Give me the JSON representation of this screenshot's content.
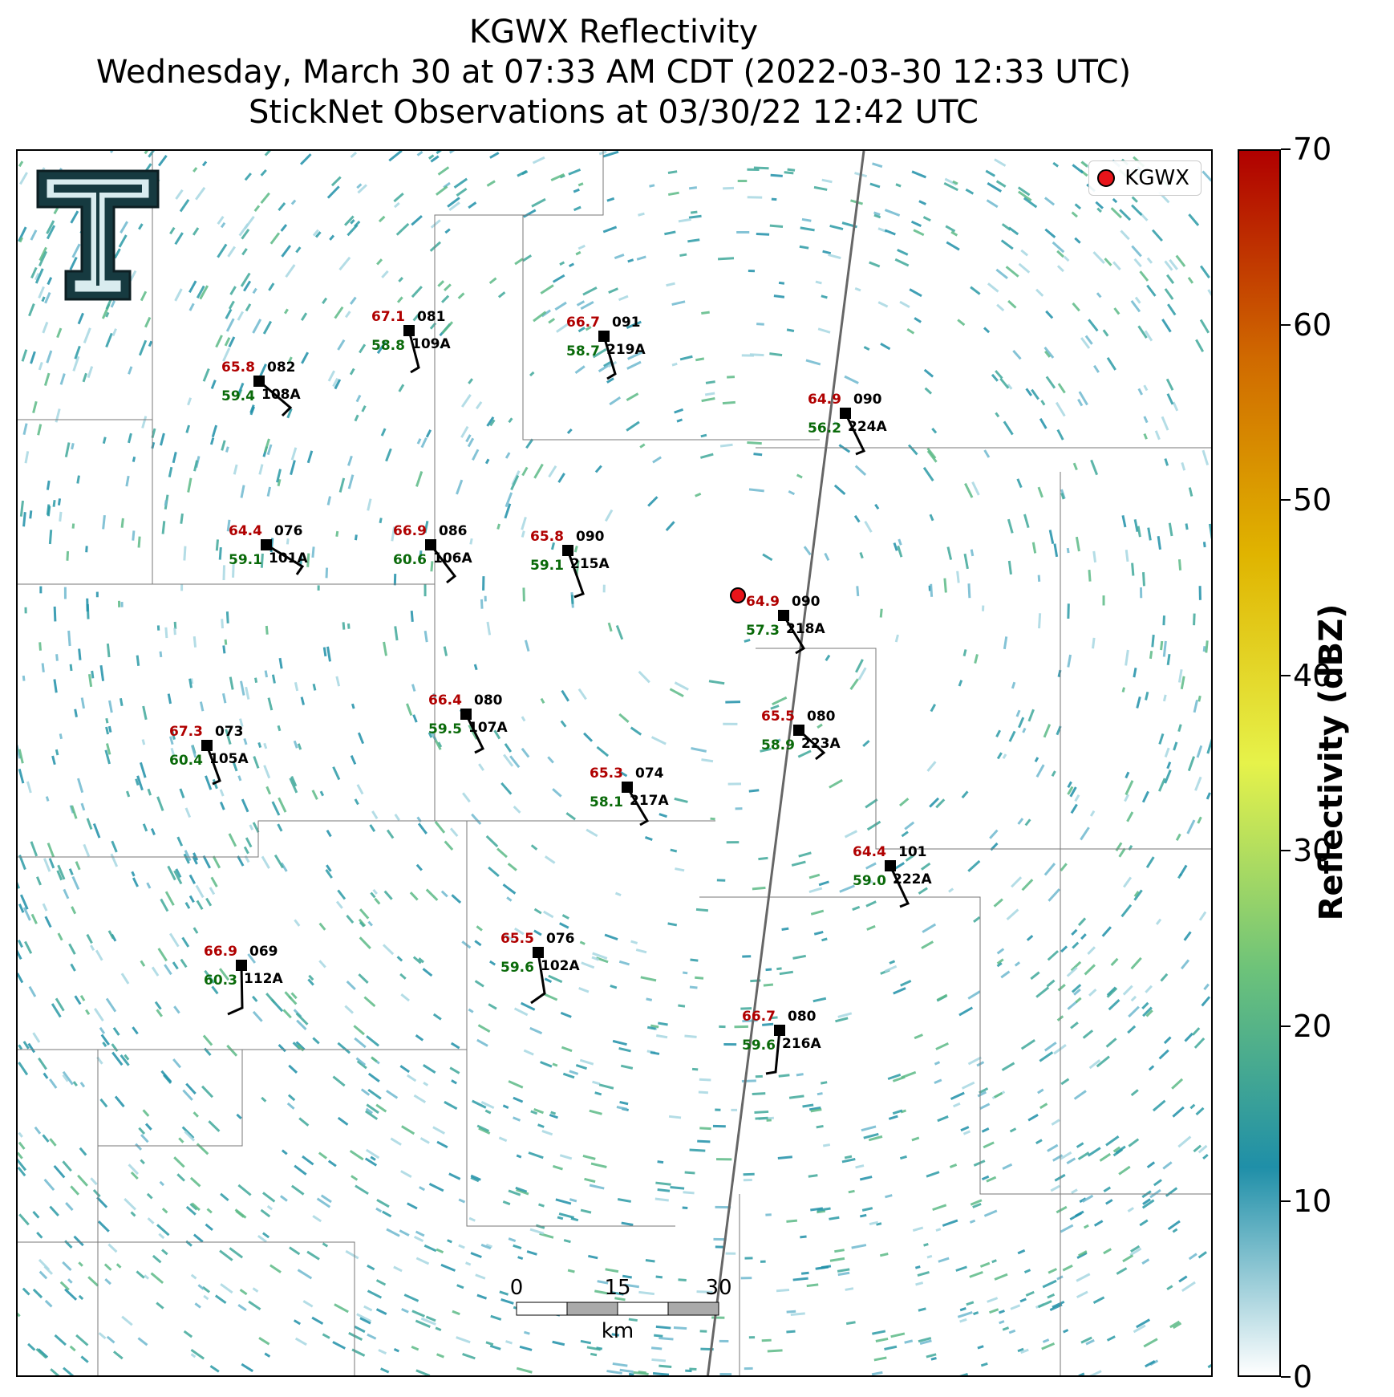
{
  "header": {
    "title_line1": "KGWX Reflectivity",
    "title_line2": "Wednesday, March 30 at 07:33 AM CDT (2022-03-30 12:33 UTC)",
    "title_line3": "StickNet Observations at 03/30/22 12:42 UTC"
  },
  "legend": {
    "label": "KGWX",
    "marker_color": "#e8141a"
  },
  "logo": {
    "name": "texas-tech-double-t-logo"
  },
  "colorbar": {
    "title": "Reflectivity (dBZ)",
    "ticks": [
      "0",
      "10",
      "20",
      "30",
      "40",
      "50",
      "60",
      "70"
    ],
    "range": [
      0,
      70
    ],
    "colors": [
      "#ffffff",
      "#1f8fa8",
      "#6cc27a",
      "#e6f24a",
      "#e0b400",
      "#d06a00",
      "#b00000"
    ]
  },
  "scale_bar": {
    "ticks": [
      "0",
      "15",
      "30"
    ],
    "unit": "km"
  },
  "stations": [
    {
      "id": "109A",
      "temp": "67.1",
      "dew": "58.8",
      "dir": "081"
    },
    {
      "id": "219A",
      "temp": "66.7",
      "dew": "58.7",
      "dir": "091"
    },
    {
      "id": "108A",
      "temp": "65.8",
      "dew": "59.4",
      "dir": "082"
    },
    {
      "id": "224A",
      "temp": "64.9",
      "dew": "56.2",
      "dir": "090"
    },
    {
      "id": "101A",
      "temp": "64.4",
      "dew": "59.1",
      "dir": "076"
    },
    {
      "id": "106A",
      "temp": "66.9",
      "dew": "60.6",
      "dir": "086"
    },
    {
      "id": "215A",
      "temp": "65.8",
      "dew": "59.1",
      "dir": "090"
    },
    {
      "id": "218A",
      "temp": "64.9",
      "dew": "57.3",
      "dir": "090"
    },
    {
      "id": "107A",
      "temp": "66.4",
      "dew": "59.5",
      "dir": "080"
    },
    {
      "id": "223A",
      "temp": "65.5",
      "dew": "58.9",
      "dir": "080"
    },
    {
      "id": "105A",
      "temp": "67.3",
      "dew": "60.4",
      "dir": "073"
    },
    {
      "id": "217A",
      "temp": "65.3",
      "dew": "58.1",
      "dir": "074"
    },
    {
      "id": "222A",
      "temp": "64.4",
      "dew": "59.0",
      "dir": "101"
    },
    {
      "id": "112A",
      "temp": "66.9",
      "dew": "60.3",
      "dir": "069"
    },
    {
      "id": "102A",
      "temp": "65.5",
      "dew": "59.6",
      "dir": "076"
    },
    {
      "id": "216A",
      "temp": "66.7",
      "dew": "59.6",
      "dir": "080"
    }
  ]
}
